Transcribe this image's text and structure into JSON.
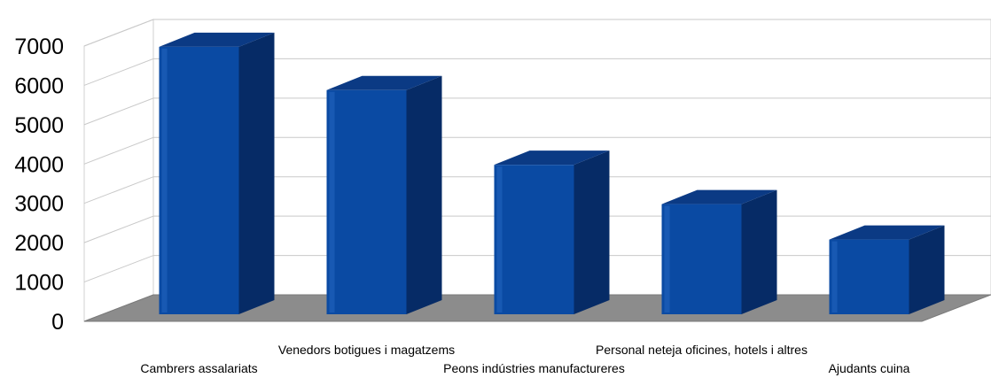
{
  "chart_data": {
    "type": "bar",
    "title": "",
    "xlabel": "",
    "ylabel": "",
    "categories": [
      "Cambrers assalariats",
      "Venedors botigues i magatzems",
      "Peons indústries manufactureres",
      "Personal neteja oficines, hotels i altres",
      "Ajudants cuina"
    ],
    "values": [
      6800,
      5700,
      3800,
      2800,
      1900
    ],
    "ylim": [
      0,
      7000
    ],
    "yticks": [
      "0",
      "1000",
      "2000",
      "3000",
      "4000",
      "5000",
      "6000",
      "7000"
    ],
    "grid": true,
    "legend": "none",
    "three_d": true,
    "colors": {
      "bar_front": "#0a4aa3",
      "bar_side": "#062b66",
      "bar_top": "#0b3a84",
      "floor": "#8c8c8c",
      "grid": "#c9c9c9"
    }
  }
}
